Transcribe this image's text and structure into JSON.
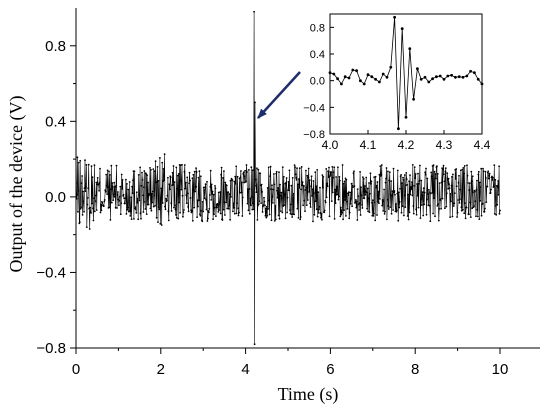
{
  "chart_data": [
    {
      "type": "line",
      "title": "",
      "xlabel": "Time (s)",
      "ylabel": "Output of the device (V)",
      "xlim": [
        0,
        10
      ],
      "ylim": [
        -0.8,
        1.0
      ],
      "xticks": [
        "0",
        "2",
        "4",
        "6",
        "8",
        "10"
      ],
      "yticks": [
        "−0.8",
        "−0.4",
        "0.0",
        "0.4",
        "0.8"
      ],
      "grid": false,
      "legend": "none",
      "line_color": "#000000",
      "noise_envelope": {
        "x_start": 0,
        "x_end": 10,
        "approx_amplitude": 0.15
      },
      "spike": {
        "x": 4.2,
        "max": 0.98,
        "min": -0.78
      },
      "annotation": {
        "type": "arrow",
        "color": "#1f2d6b",
        "points_to_x": 4.2,
        "points_to_y": 0.42
      }
    },
    {
      "type": "line",
      "title": "inset",
      "xlabel": "",
      "ylabel": "",
      "xlim": [
        4.0,
        4.4
      ],
      "ylim": [
        -0.8,
        1.0
      ],
      "xticks": [
        "4.0",
        "4.1",
        "4.2",
        "4.3",
        "4.4"
      ],
      "yticks": [
        "−0.8",
        "−0.4",
        "0.0",
        "0.4",
        "0.8"
      ],
      "grid": false,
      "x": [
        4.0,
        4.01,
        4.02,
        4.03,
        4.04,
        4.05,
        4.06,
        4.07,
        4.08,
        4.09,
        4.1,
        4.11,
        4.12,
        4.13,
        4.14,
        4.15,
        4.16,
        4.17,
        4.18,
        4.19,
        4.2,
        4.21,
        4.22,
        4.23,
        4.24,
        4.25,
        4.26,
        4.27,
        4.28,
        4.29,
        4.3,
        4.31,
        4.32,
        4.33,
        4.34,
        4.35,
        4.36,
        4.37,
        4.38,
        4.39,
        4.4
      ],
      "values": [
        0.12,
        0.1,
        0.03,
        -0.05,
        0.06,
        0.04,
        0.16,
        0.15,
        0.0,
        -0.05,
        0.09,
        0.06,
        0.02,
        -0.02,
        0.1,
        0.05,
        0.2,
        0.95,
        -0.72,
        0.78,
        -0.55,
        0.48,
        -0.28,
        0.18,
        0.02,
        0.05,
        -0.02,
        0.03,
        0.06,
        0.07,
        0.02,
        0.07,
        0.08,
        0.05,
        0.06,
        0.05,
        0.07,
        0.14,
        0.12,
        0.02,
        -0.05
      ]
    }
  ]
}
